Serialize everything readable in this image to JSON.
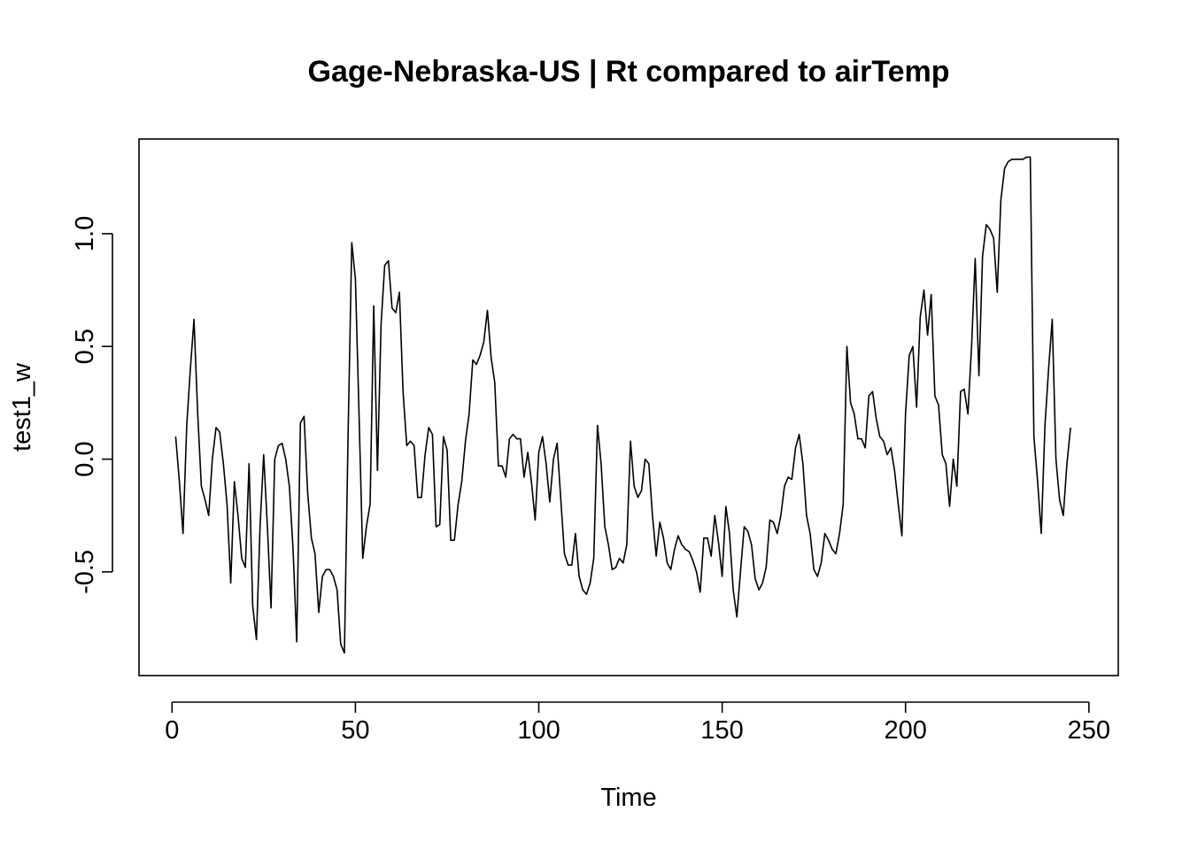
{
  "chart_data": {
    "type": "line",
    "title": "Gage-Nebraska-US | Rt compared to airTemp",
    "xlabel": "Time",
    "ylabel": "test1_w",
    "xlim": [
      -9,
      258
    ],
    "ylim": [
      -0.96,
      1.42
    ],
    "x_ticks": [
      0,
      50,
      100,
      150,
      200,
      250
    ],
    "x_tick_labels": [
      "0",
      "50",
      "100",
      "150",
      "200",
      "250"
    ],
    "y_ticks": [
      -0.5,
      0.0,
      0.5,
      1.0
    ],
    "y_tick_labels": [
      "-0.5",
      "0.0",
      "0.5",
      "1.0"
    ],
    "grid": false,
    "legend": "none",
    "color": "#000000",
    "series": [
      {
        "x_start": 1,
        "x_step": 1,
        "values": [
          0.1,
          -0.1,
          -0.33,
          0.15,
          0.4,
          0.62,
          0.2,
          -0.12,
          -0.18,
          -0.25,
          0.0,
          0.14,
          0.12,
          -0.02,
          -0.2,
          -0.55,
          -0.1,
          -0.25,
          -0.44,
          -0.48,
          -0.02,
          -0.65,
          -0.8,
          -0.3,
          0.02,
          -0.3,
          -0.66,
          0.0,
          0.06,
          0.07,
          0.0,
          -0.12,
          -0.4,
          -0.81,
          0.16,
          0.19,
          -0.15,
          -0.35,
          -0.42,
          -0.68,
          -0.52,
          -0.49,
          -0.49,
          -0.52,
          -0.58,
          -0.82,
          -0.86,
          0.1,
          0.96,
          0.8,
          0.2,
          -0.44,
          -0.3,
          -0.2,
          0.68,
          -0.05,
          0.6,
          0.86,
          0.88,
          0.67,
          0.65,
          0.74,
          0.3,
          0.06,
          0.08,
          0.06,
          -0.17,
          -0.17,
          0.02,
          0.14,
          0.11,
          -0.3,
          -0.29,
          0.1,
          0.04,
          -0.36,
          -0.36,
          -0.2,
          -0.1,
          0.08,
          0.2,
          0.44,
          0.42,
          0.46,
          0.52,
          0.66,
          0.45,
          0.34,
          -0.03,
          -0.03,
          -0.08,
          0.09,
          0.11,
          0.09,
          0.09,
          -0.08,
          0.03,
          -0.1,
          -0.27,
          0.03,
          0.1,
          -0.02,
          -0.19,
          0.0,
          0.07,
          -0.18,
          -0.42,
          -0.47,
          -0.47,
          -0.33,
          -0.52,
          -0.58,
          -0.6,
          -0.55,
          -0.44,
          0.15,
          -0.02,
          -0.3,
          -0.38,
          -0.49,
          -0.48,
          -0.44,
          -0.46,
          -0.38,
          0.08,
          -0.12,
          -0.17,
          -0.14,
          0.0,
          -0.02,
          -0.25,
          -0.43,
          -0.28,
          -0.35,
          -0.46,
          -0.49,
          -0.4,
          -0.34,
          -0.38,
          -0.4,
          -0.41,
          -0.45,
          -0.5,
          -0.59,
          -0.35,
          -0.35,
          -0.43,
          -0.25,
          -0.37,
          -0.52,
          -0.21,
          -0.33,
          -0.58,
          -0.7,
          -0.5,
          -0.3,
          -0.32,
          -0.38,
          -0.53,
          -0.58,
          -0.55,
          -0.48,
          -0.27,
          -0.28,
          -0.33,
          -0.25,
          -0.12,
          -0.08,
          -0.09,
          0.05,
          0.11,
          -0.02,
          -0.25,
          -0.33,
          -0.49,
          -0.52,
          -0.46,
          -0.33,
          -0.36,
          -0.4,
          -0.42,
          -0.33,
          -0.2,
          0.5,
          0.25,
          0.2,
          0.09,
          0.09,
          0.05,
          0.28,
          0.3,
          0.18,
          0.1,
          0.08,
          0.02,
          0.05,
          -0.05,
          -0.2,
          -0.34,
          0.2,
          0.46,
          0.5,
          0.23,
          0.63,
          0.75,
          0.55,
          0.73,
          0.28,
          0.24,
          0.02,
          -0.02,
          -0.21,
          0.0,
          -0.12,
          0.3,
          0.31,
          0.2,
          0.5,
          0.89,
          0.37,
          0.9,
          1.04,
          1.02,
          0.98,
          0.74,
          1.15,
          1.29,
          1.32,
          1.33,
          1.33,
          1.33,
          1.33,
          1.34,
          1.34,
          0.1,
          -0.1,
          -0.33,
          0.15,
          0.4,
          0.62,
          0.0,
          -0.18,
          -0.25,
          -0.02,
          0.14
        ]
      }
    ]
  }
}
